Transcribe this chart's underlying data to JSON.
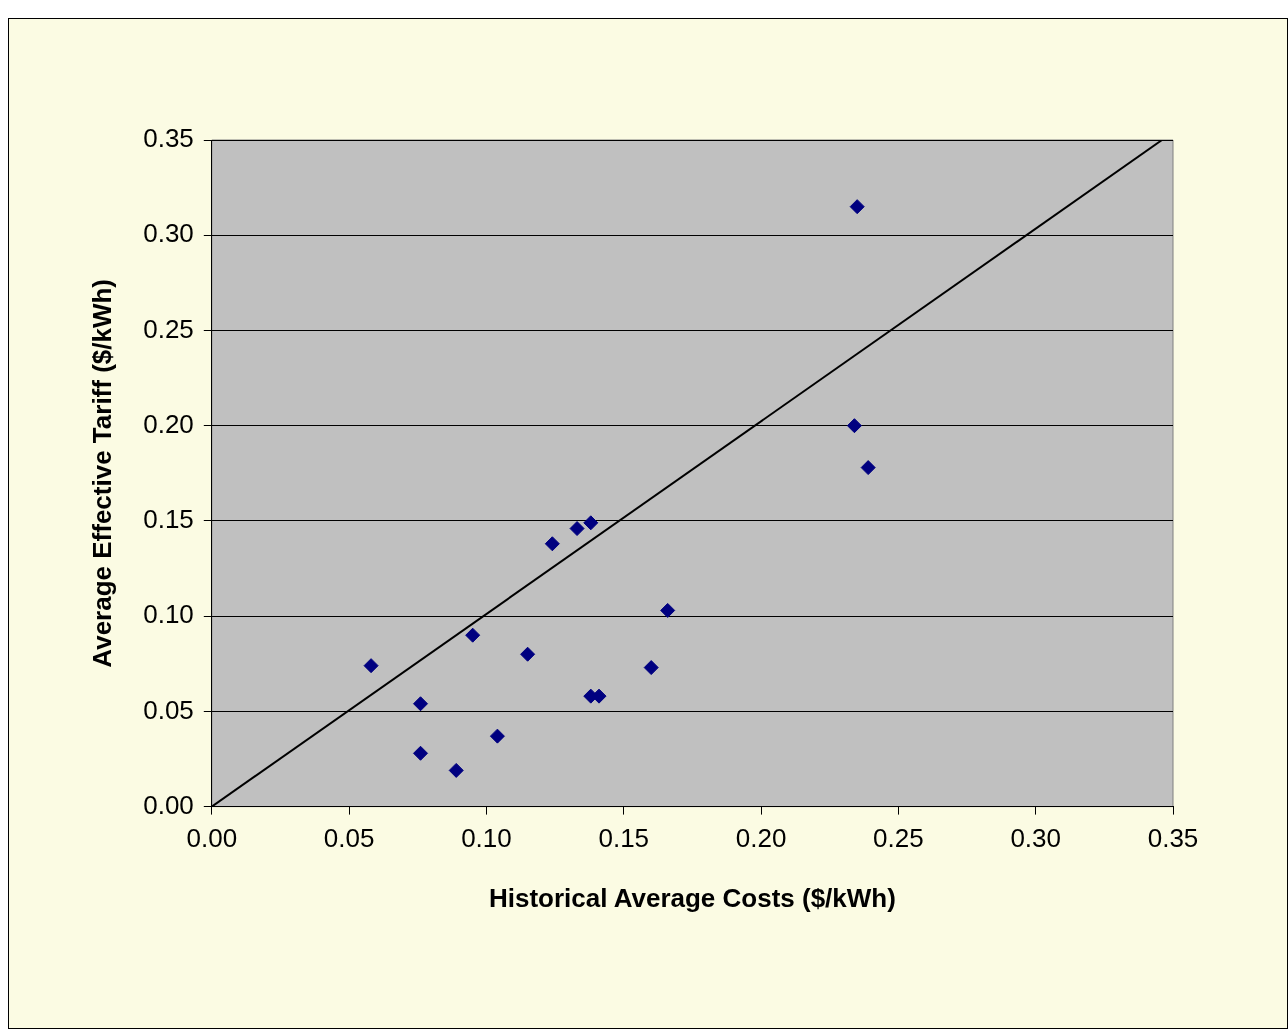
{
  "chart_data": {
    "type": "scatter",
    "xlabel": "Historical Average Costs ($/kWh)",
    "ylabel": "Average Effective Tariff ($/kWh)",
    "xlim": [
      0,
      0.35
    ],
    "ylim": [
      0,
      0.35
    ],
    "xticks": [
      {
        "value": 0,
        "label": "0.00"
      },
      {
        "value": 0.05,
        "label": "0.05"
      },
      {
        "value": 0.1,
        "label": "0.10"
      },
      {
        "value": 0.15,
        "label": "0.15"
      },
      {
        "value": 0.2,
        "label": "0.20"
      },
      {
        "value": 0.25,
        "label": "0.25"
      },
      {
        "value": 0.3,
        "label": "0.30"
      },
      {
        "value": 0.35,
        "label": "0.35"
      }
    ],
    "yticks": [
      {
        "value": 0,
        "label": "0.00"
      },
      {
        "value": 0.05,
        "label": "0.05"
      },
      {
        "value": 0.1,
        "label": "0.10"
      },
      {
        "value": 0.15,
        "label": "0.15"
      },
      {
        "value": 0.2,
        "label": "0.20"
      },
      {
        "value": 0.25,
        "label": "0.25"
      },
      {
        "value": 0.3,
        "label": "0.30"
      },
      {
        "value": 0.35,
        "label": "0.35"
      }
    ],
    "grid": "y",
    "legend": false,
    "marker": "diamond",
    "series": [
      {
        "type": "scatter",
        "color": "#000080",
        "x": [
          0.058,
          0.076,
          0.076,
          0.089,
          0.095,
          0.104,
          0.115,
          0.124,
          0.133,
          0.138,
          0.138,
          0.141,
          0.16,
          0.166,
          0.234,
          0.235,
          0.239
        ],
        "values": [
          0.074,
          0.054,
          0.028,
          0.019,
          0.09,
          0.037,
          0.08,
          0.138,
          0.146,
          0.149,
          0.058,
          0.058,
          0.073,
          0.103,
          0.2,
          0.315,
          0.178
        ]
      },
      {
        "type": "line",
        "color": "#000000",
        "marker": "none",
        "x": [
          0,
          0.346
        ],
        "values": [
          0,
          0.35
        ]
      }
    ]
  }
}
